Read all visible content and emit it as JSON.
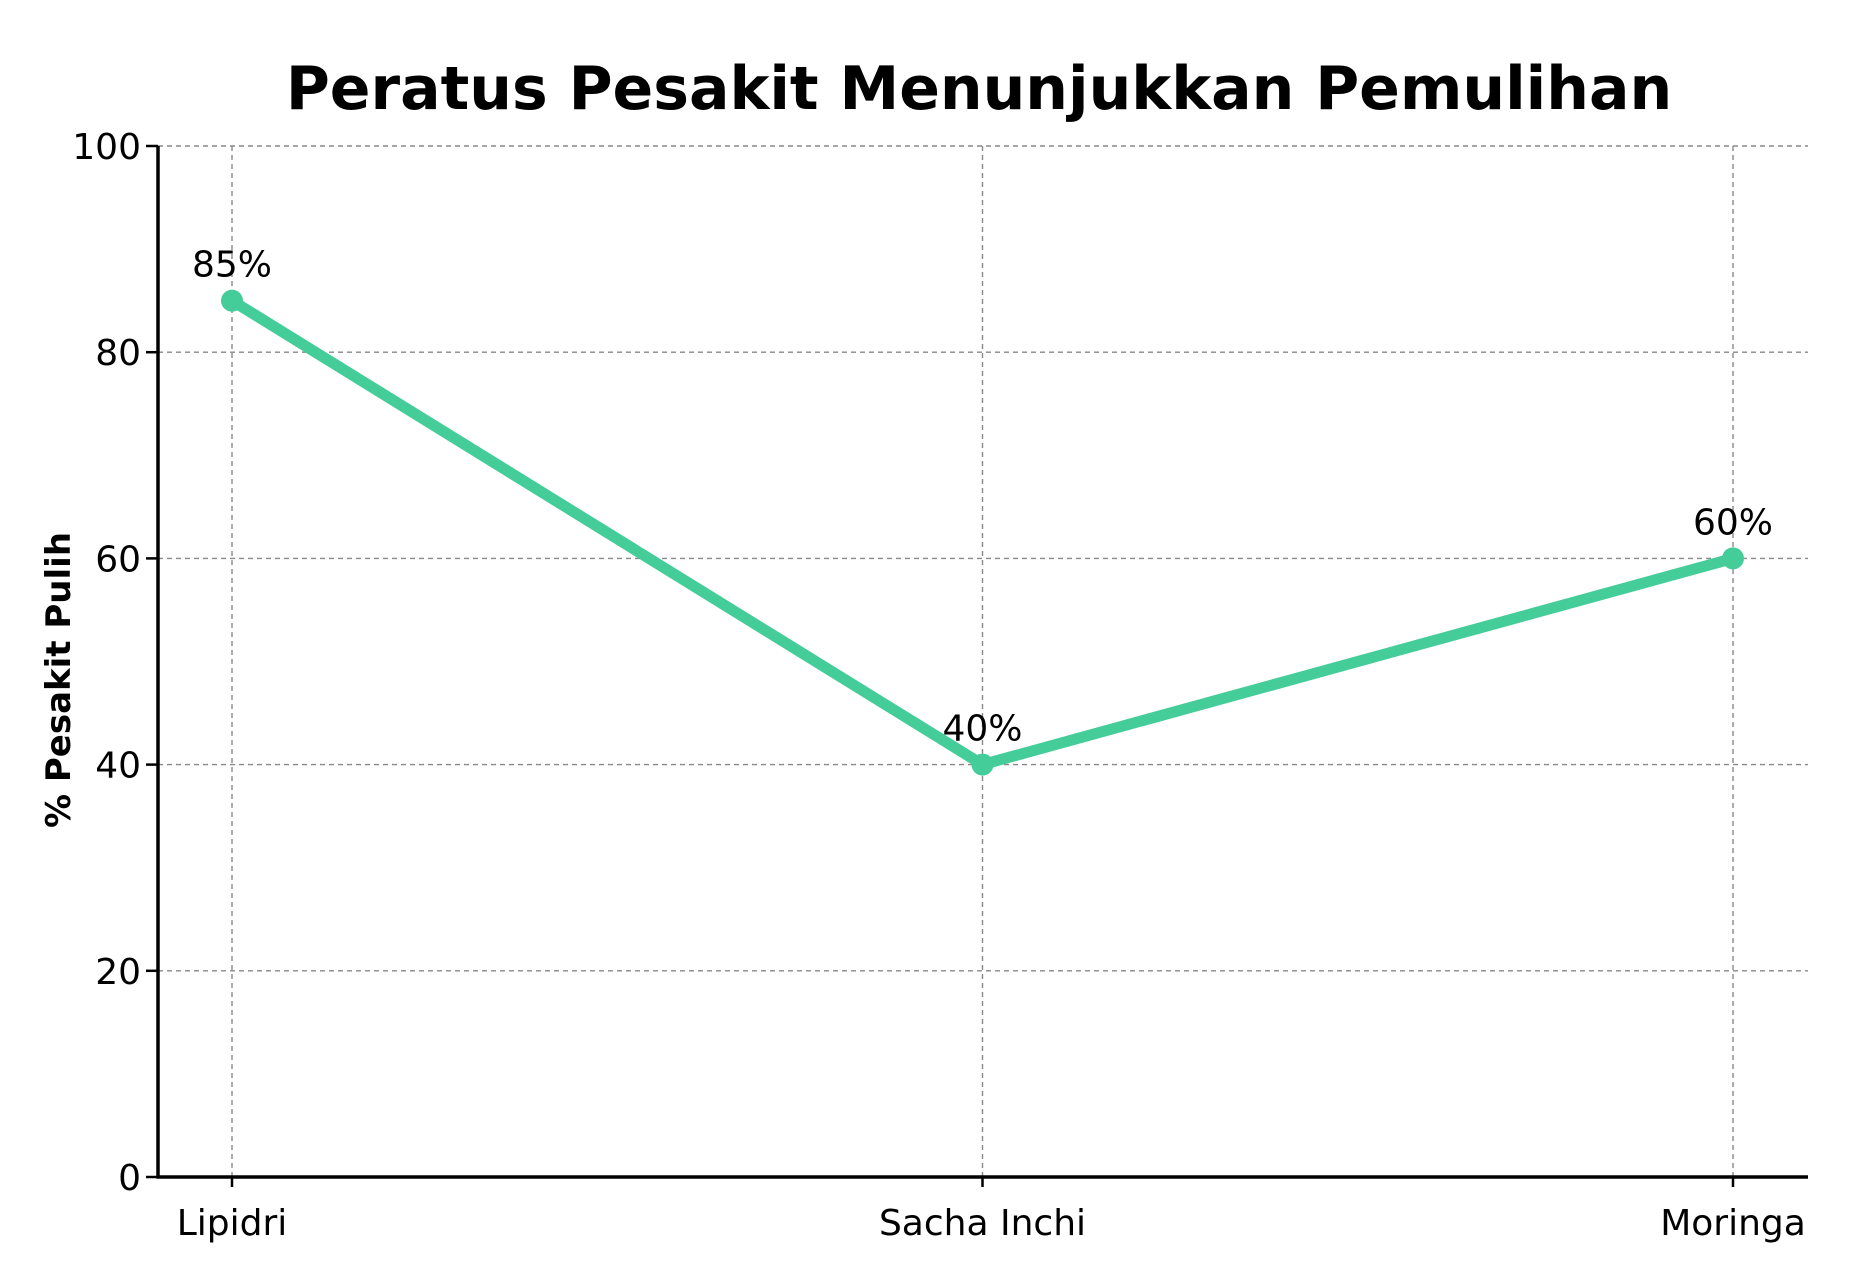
{
  "chart_data": {
    "type": "line",
    "title": "Peratus Pesakit Menunjukkan Pemulihan",
    "xlabel": "",
    "ylabel": "% Pesakit Pulih",
    "categories": [
      "Lipidri",
      "Sacha Inchi",
      "Moringa"
    ],
    "series": [
      {
        "values": [
          85,
          40,
          60
        ],
        "data_labels": [
          "85%",
          "40%",
          "60%"
        ],
        "color": "#44cc99"
      }
    ],
    "ylim": [
      0,
      100
    ],
    "yticks": [
      0,
      20,
      40,
      60,
      80,
      100
    ],
    "ytick_labels": [
      "0",
      "20",
      "40",
      "60",
      "80",
      "100"
    ],
    "grid": true,
    "legend": "none"
  }
}
